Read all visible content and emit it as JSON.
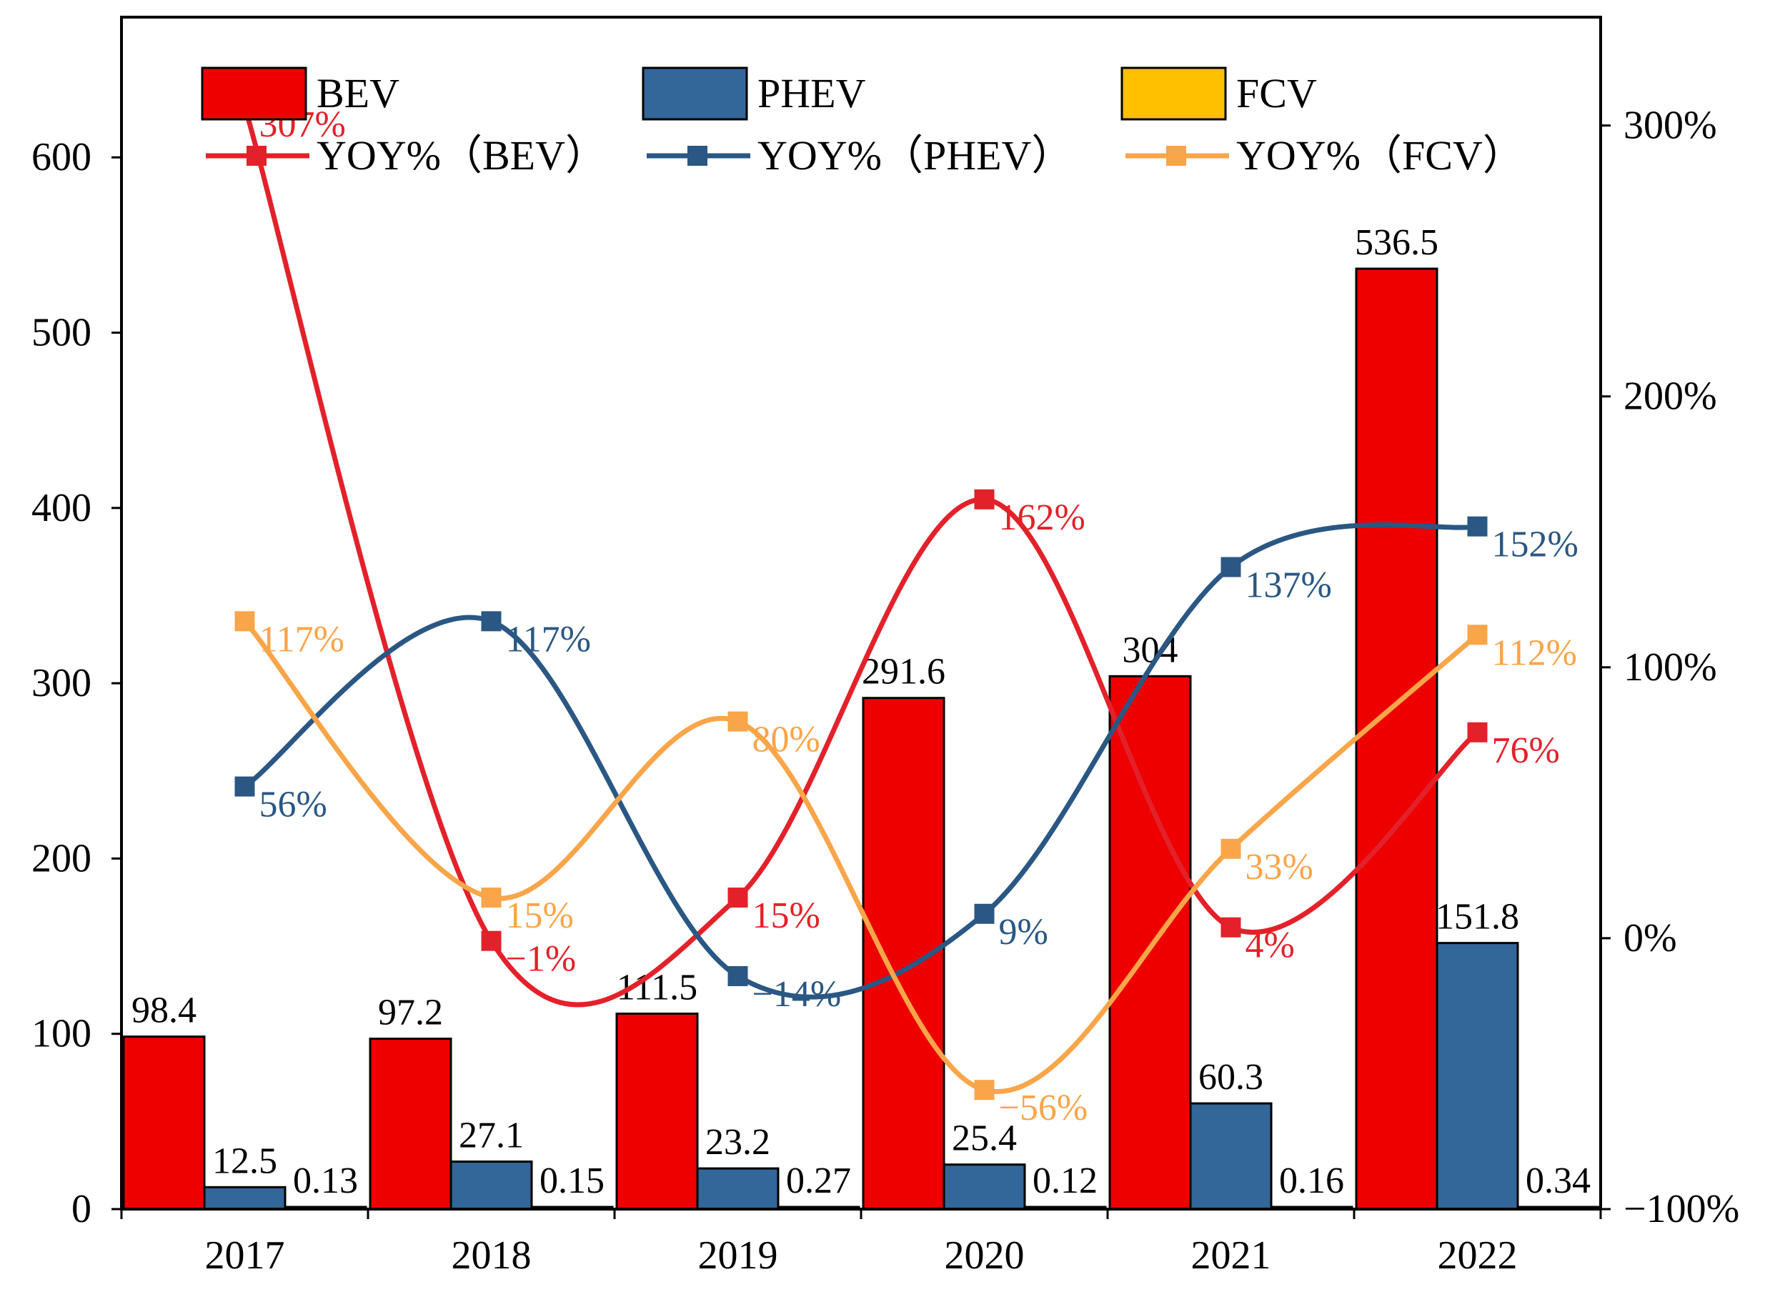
{
  "chart_data": {
    "type": "bar",
    "categories": [
      "2017",
      "2018",
      "2019",
      "2020",
      "2021",
      "2022"
    ],
    "bar_series": [
      {
        "key": "bev",
        "name": "BEV",
        "color": "#EE0000",
        "values": [
          98.4,
          97.2,
          111.5,
          291.6,
          304,
          536.5
        ],
        "labels": [
          "98.4",
          "97.2",
          "111.5",
          "291.6",
          "304",
          "536.5"
        ]
      },
      {
        "key": "phev",
        "name": "PHEV",
        "color": "#336699",
        "values": [
          12.5,
          27.1,
          23.2,
          25.4,
          60.3,
          151.8
        ],
        "labels": [
          "12.5",
          "27.1",
          "23.2",
          "25.4",
          "60.3",
          "151.8"
        ]
      },
      {
        "key": "fcv",
        "name": "FCV",
        "color": "#FFC000",
        "values": [
          0.13,
          0.15,
          0.27,
          0.12,
          0.16,
          0.34
        ],
        "labels": [
          "0.13",
          "0.15",
          "0.27",
          "0.12",
          "0.16",
          "0.34"
        ]
      }
    ],
    "line_series": [
      {
        "key": "yoy-bev",
        "name": "YOY%（BEV）",
        "color": "#E3212A",
        "values": [
          307,
          -1,
          15,
          162,
          4,
          76
        ],
        "labels": [
          "307%",
          "−1%",
          "15%",
          "162%",
          "4%",
          "76%"
        ]
      },
      {
        "key": "yoy-phev",
        "name": "YOY%（PHEV）",
        "color": "#2A5783",
        "values": [
          56,
          117,
          -14,
          9,
          137,
          152
        ],
        "labels": [
          "56%",
          "117%",
          "−14%",
          "9%",
          "137%",
          "152%"
        ]
      },
      {
        "key": "yoy-fcv",
        "name": "YOY%（FCV）",
        "color": "#F9A54A",
        "values": [
          117,
          15,
          80,
          -56,
          33,
          112
        ],
        "labels": [
          "117%",
          "15%",
          "80%",
          "−56%",
          "33%",
          "112%"
        ]
      }
    ],
    "y_left": {
      "min": 0,
      "max": 680,
      "ticks": [
        0,
        100,
        200,
        300,
        400,
        500,
        600
      ],
      "tick_labels": [
        "0",
        "100",
        "200",
        "300",
        "400",
        "500",
        "600"
      ]
    },
    "y_right": {
      "min": -100,
      "max": 340,
      "ticks": [
        -100,
        0,
        100,
        200,
        300
      ],
      "tick_labels": [
        "−100%",
        "0%",
        "100%",
        "200%",
        "300%"
      ]
    },
    "title": "",
    "xlabel": "",
    "ylabel": "",
    "grid": false,
    "legend_position": "top"
  }
}
